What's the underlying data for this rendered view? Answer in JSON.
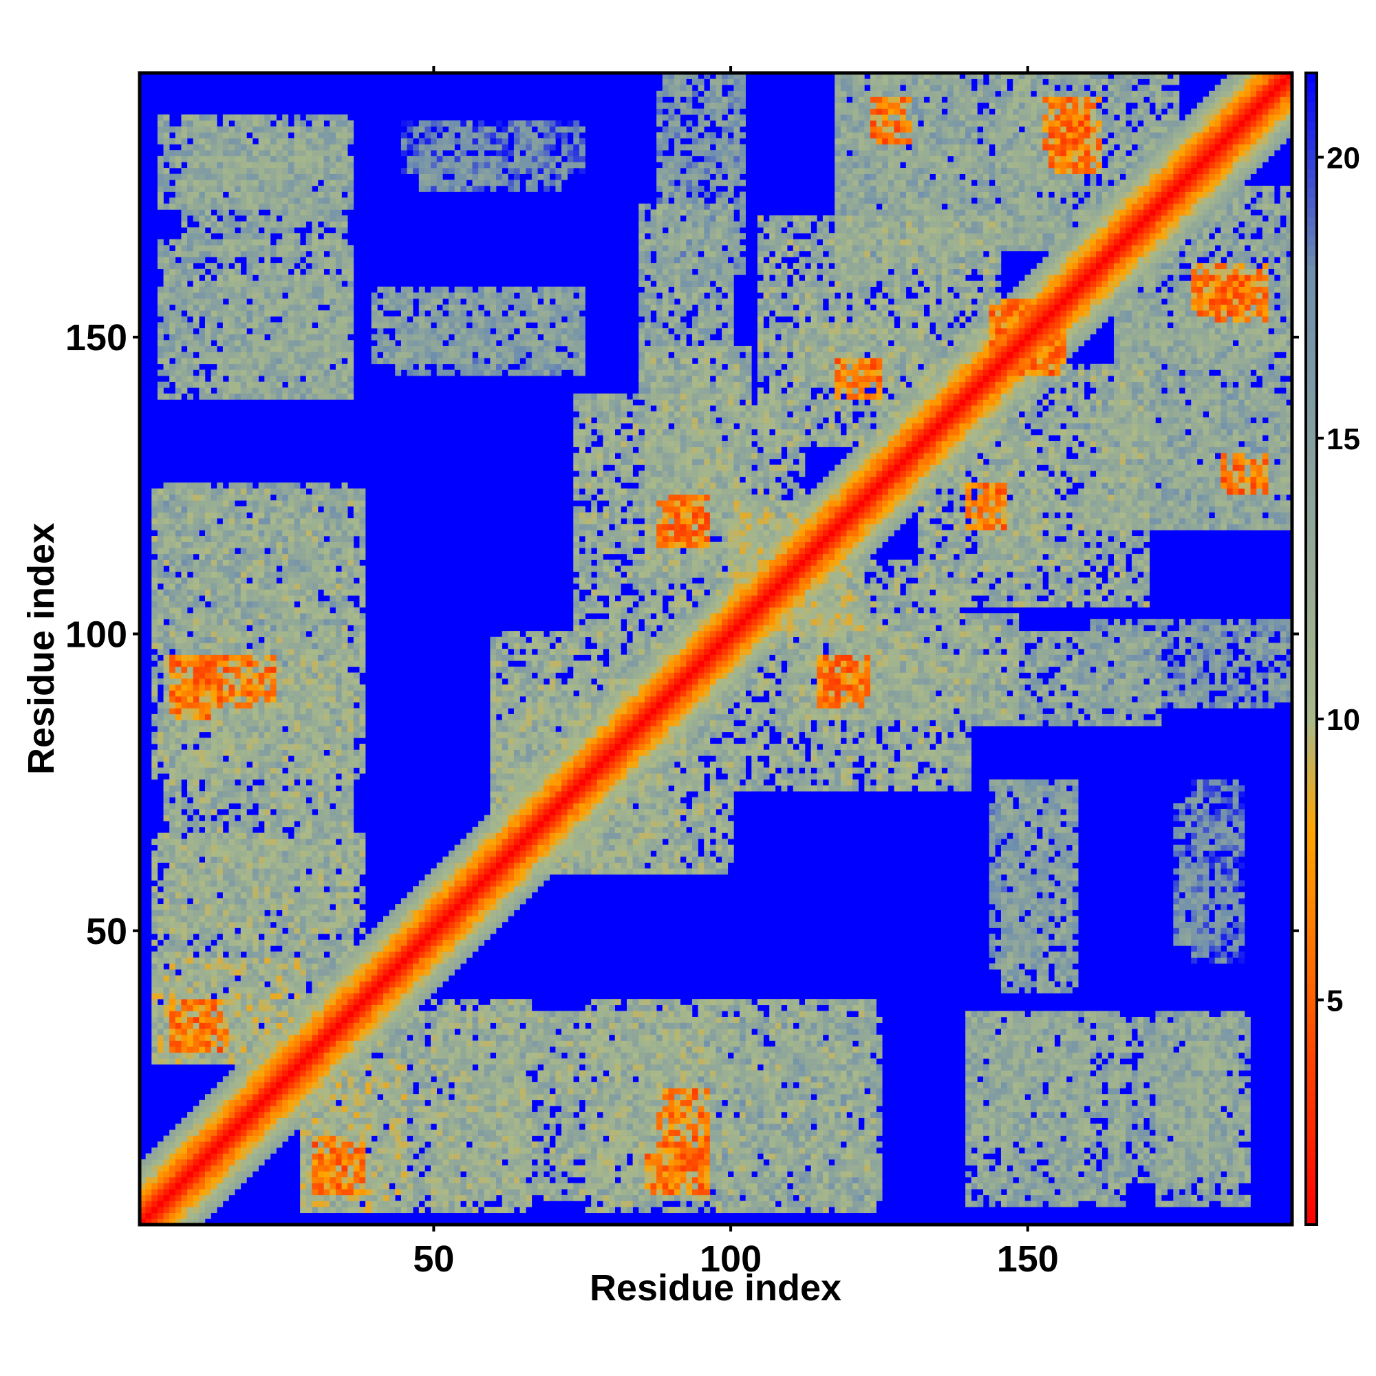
{
  "chart_data": {
    "type": "heatmap",
    "title": "",
    "xlabel": "Residue index",
    "ylabel": "Residue index",
    "xlim": [
      1,
      194
    ],
    "ylim": [
      1,
      194
    ],
    "x_ticks": [
      50,
      100,
      150
    ],
    "y_ticks": [
      50,
      100,
      150
    ],
    "colorbar": {
      "range": [
        1,
        21.5
      ],
      "ticks": [
        5,
        10,
        15,
        20
      ],
      "stops": [
        {
          "value": 1,
          "color": "#ff0000"
        },
        {
          "value": 5.5,
          "color": "#ff6a00"
        },
        {
          "value": 8,
          "color": "#ffa500"
        },
        {
          "value": 10,
          "color": "#a9b98a"
        },
        {
          "value": 18,
          "color": "#6f8fae"
        },
        {
          "value": 21.5,
          "color": "#0000ff"
        }
      ]
    },
    "values_description": "distance map, symmetric about the diagonal; red = short distance, blue = >= 21",
    "diagonal_band": {
      "min_value": 1,
      "band_width": 10
    },
    "contact_blocks": [
      {
        "x": [
          4,
          36
        ],
        "y": [
          172,
          187
        ],
        "value": 13
      },
      {
        "x": [
          4,
          36
        ],
        "y": [
          140,
          166
        ],
        "value": 13
      },
      {
        "x": [
          40,
          75
        ],
        "y": [
          146,
          158
        ],
        "value": 14
      },
      {
        "x": [
          45,
          75
        ],
        "y": [
          178,
          186
        ],
        "value": 17
      },
      {
        "x": [
          3,
          38
        ],
        "y": [
          76,
          124
        ],
        "value": 12
      },
      {
        "x": [
          8,
          23
        ],
        "y": [
          88,
          96
        ],
        "value": 6
      },
      {
        "x": [
          3,
          38
        ],
        "y": [
          28,
          66
        ],
        "value": 12
      },
      {
        "x": [
          6,
          15
        ],
        "y": [
          30,
          38
        ],
        "value": 6
      },
      {
        "x": [
          28,
          45
        ],
        "y": [
          3,
          28
        ],
        "value": 11
      },
      {
        "x": [
          30,
          35
        ],
        "y": [
          6,
          12
        ],
        "value": 6
      },
      {
        "x": [
          50,
          95
        ],
        "y": [
          5,
          36
        ],
        "value": 12
      },
      {
        "x": [
          86,
          96
        ],
        "y": [
          6,
          12
        ],
        "value": 6
      },
      {
        "x": [
          60,
          100
        ],
        "y": [
          60,
          92
        ],
        "value": 12
      },
      {
        "x": [
          85,
          125
        ],
        "y": [
          5,
          35
        ],
        "value": 14
      },
      {
        "x": [
          86,
          103
        ],
        "y": [
          110,
          148
        ],
        "value": 12
      },
      {
        "x": [
          88,
          95
        ],
        "y": [
          115,
          122
        ],
        "value": 6
      },
      {
        "x": [
          100,
          140
        ],
        "y": [
          74,
          112
        ],
        "value": 12
      },
      {
        "x": [
          115,
          123
        ],
        "y": [
          89,
          96
        ],
        "value": 6
      },
      {
        "x": [
          88,
          102
        ],
        "y": [
          160,
          194
        ],
        "value": 15
      },
      {
        "x": [
          105,
          145
        ],
        "y": [
          132,
          170
        ],
        "value": 12
      },
      {
        "x": [
          118,
          125
        ],
        "y": [
          140,
          146
        ],
        "value": 6
      },
      {
        "x": [
          118,
          155
        ],
        "y": [
          166,
          194
        ],
        "value": 13
      },
      {
        "x": [
          153,
          160
        ],
        "y": [
          182,
          190
        ],
        "value": 6
      },
      {
        "x": [
          140,
          172
        ],
        "y": [
          85,
          100
        ],
        "value": 13
      },
      {
        "x": [
          143,
          152
        ],
        "y": [
          110,
          132
        ],
        "value": 12
      },
      {
        "x": [
          165,
          194
        ],
        "y": [
          145,
          175
        ],
        "value": 13
      },
      {
        "x": [
          178,
          190
        ],
        "y": [
          154,
          162
        ],
        "value": 6
      },
      {
        "x": [
          160,
          194
        ],
        "y": [
          118,
          140
        ],
        "value": 14
      },
      {
        "x": [
          183,
          190
        ],
        "y": [
          124,
          130
        ],
        "value": 6
      },
      {
        "x": [
          144,
          150
        ],
        "y": [
          44,
          75
        ],
        "value": 15
      },
      {
        "x": [
          175,
          180
        ],
        "y": [
          48,
          72
        ],
        "value": 16
      },
      {
        "x": [
          140,
          160
        ],
        "y": [
          15,
          35
        ],
        "value": 13
      },
      {
        "x": [
          165,
          185
        ],
        "y": [
          8,
          35
        ],
        "value": 13
      },
      {
        "x": [
          145,
          155
        ],
        "y": [
          144,
          156
        ],
        "value": 6
      },
      {
        "x": [
          100,
          120
        ],
        "y": [
          100,
          122
        ],
        "value": 11
      }
    ]
  }
}
